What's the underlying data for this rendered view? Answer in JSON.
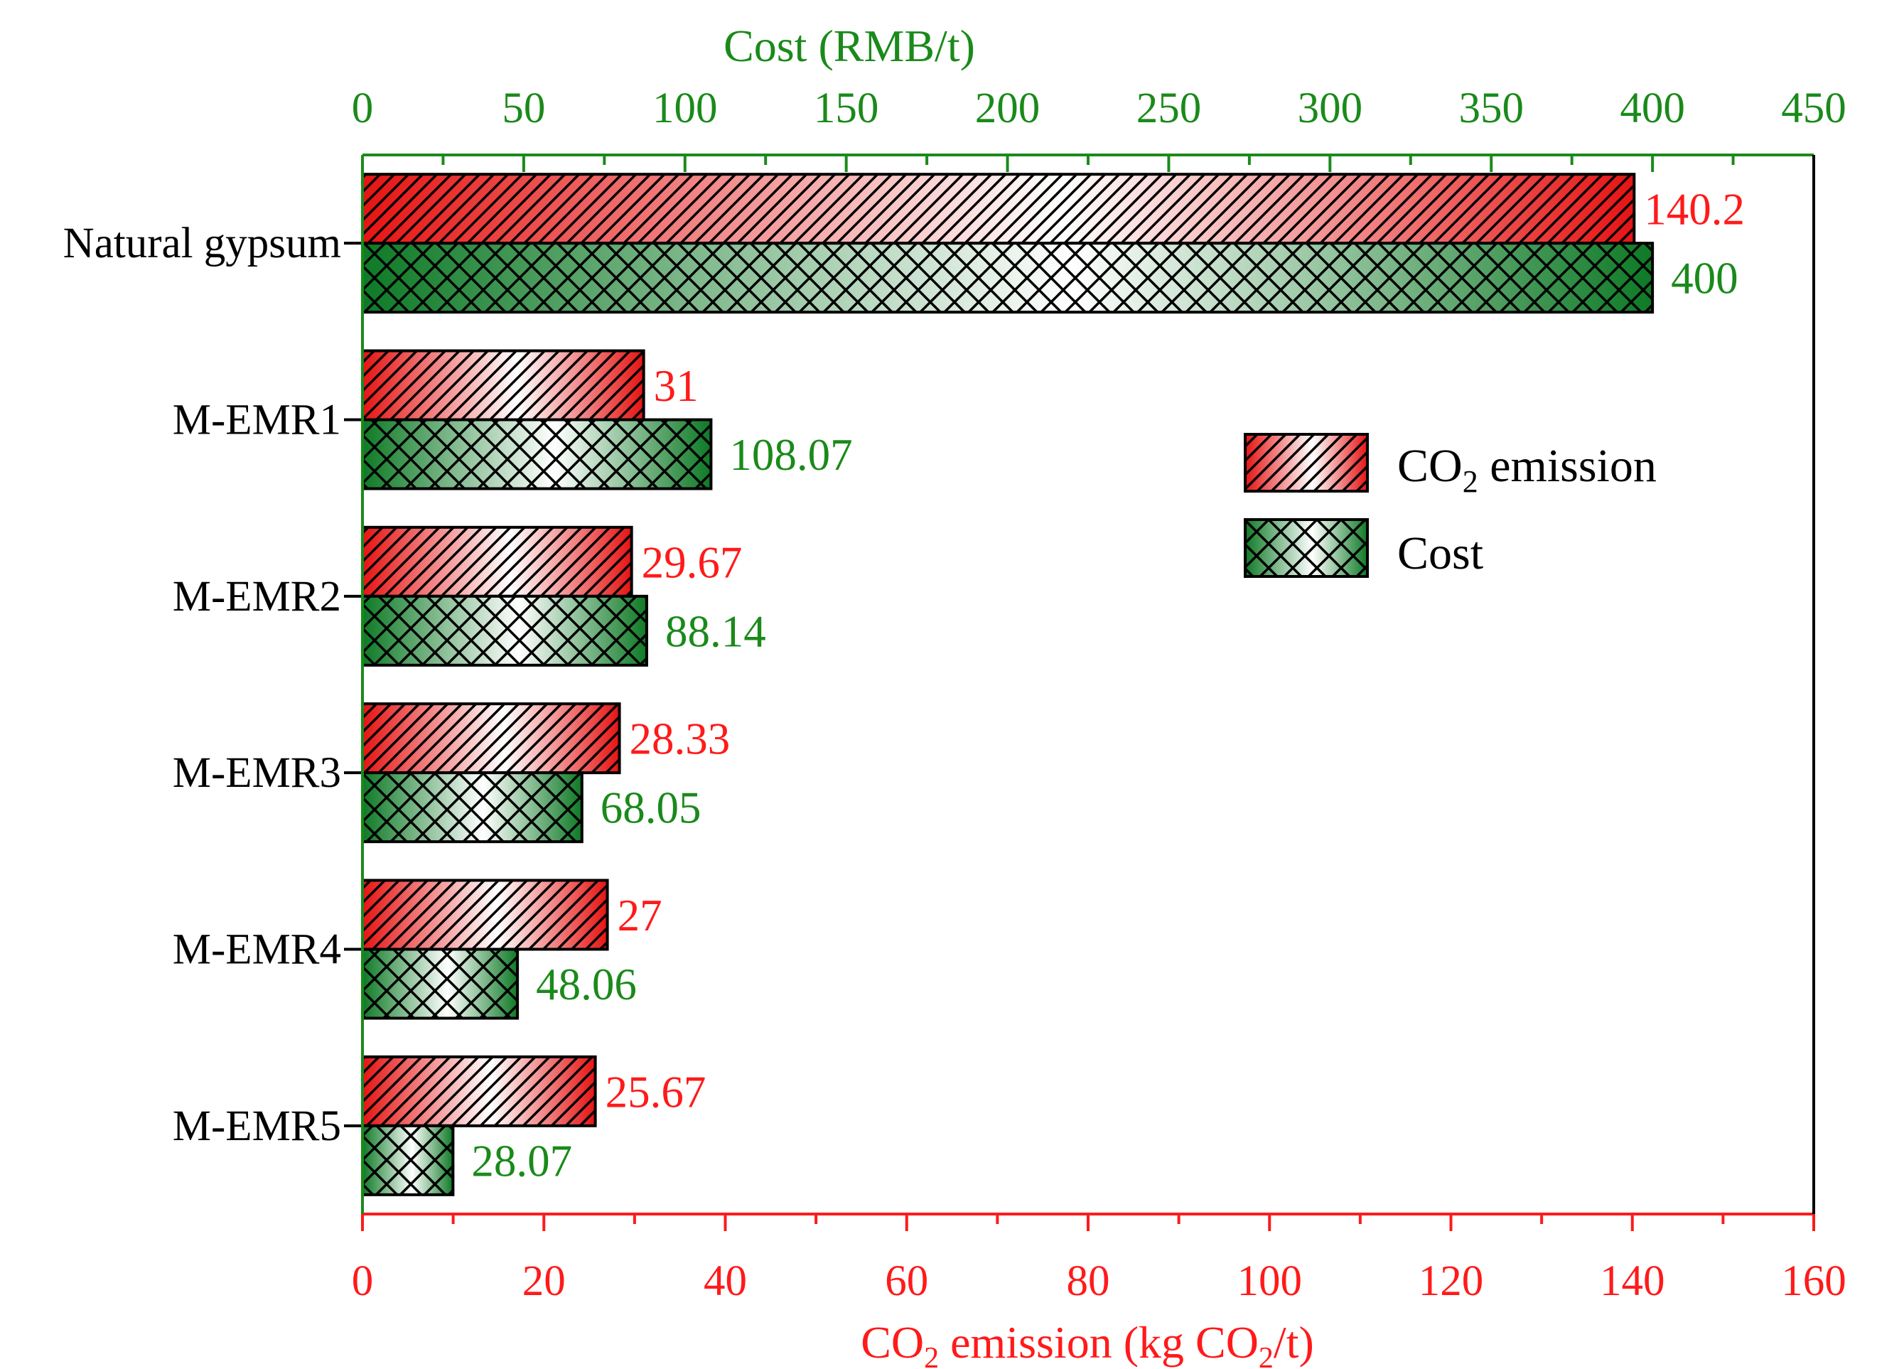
{
  "colors": {
    "emission": "#ff1a1a",
    "cost": "#1a8a1a",
    "emission_dark": "#e61414",
    "cost_dark": "#0e7a26",
    "frame": "#000000"
  },
  "chart_data": {
    "type": "bar",
    "orientation": "horizontal",
    "categories": [
      "Natural gypsum",
      "M-EMR1",
      "M-EMR2",
      "M-EMR3",
      "M-EMR4",
      "M-EMR5"
    ],
    "series": [
      {
        "name": "CO2 emission",
        "name_main": "CO",
        "name_sub": "2",
        "name_rest": " emission",
        "axis": "bottom",
        "values": [
          140.2,
          31,
          29.67,
          28.33,
          27,
          25.67
        ],
        "labels": [
          "140.2",
          "31",
          "29.67",
          "28.33",
          "27",
          "25.67"
        ]
      },
      {
        "name": "Cost",
        "axis": "top",
        "values": [
          400,
          108.07,
          88.14,
          68.05,
          48.06,
          28.07
        ],
        "labels": [
          "400",
          "108.07",
          "88.14",
          "68.05",
          "48.06",
          "28.07"
        ]
      }
    ],
    "top_axis": {
      "title": "Cost (RMB/t)",
      "range": [
        0,
        450
      ],
      "ticks": [
        "0",
        "50",
        "100",
        "150",
        "200",
        "250",
        "300",
        "350",
        "400",
        "450"
      ],
      "tick_values": [
        0,
        50,
        100,
        150,
        200,
        250,
        300,
        350,
        400,
        450
      ],
      "minor_step": 25
    },
    "bottom_axis": {
      "title_parts": [
        "CO",
        "2",
        " emission (kg CO",
        "2",
        "/t)"
      ],
      "range": [
        0,
        160
      ],
      "ticks": [
        "0",
        "20",
        "40",
        "60",
        "80",
        "100",
        "120",
        "140",
        "160"
      ],
      "tick_values": [
        0,
        20,
        40,
        60,
        80,
        100,
        120,
        140,
        160
      ],
      "minor_step": 10
    },
    "legend": {
      "position": "upper-right",
      "entries": [
        "CO2 emission",
        "Cost"
      ]
    },
    "grid": false
  }
}
